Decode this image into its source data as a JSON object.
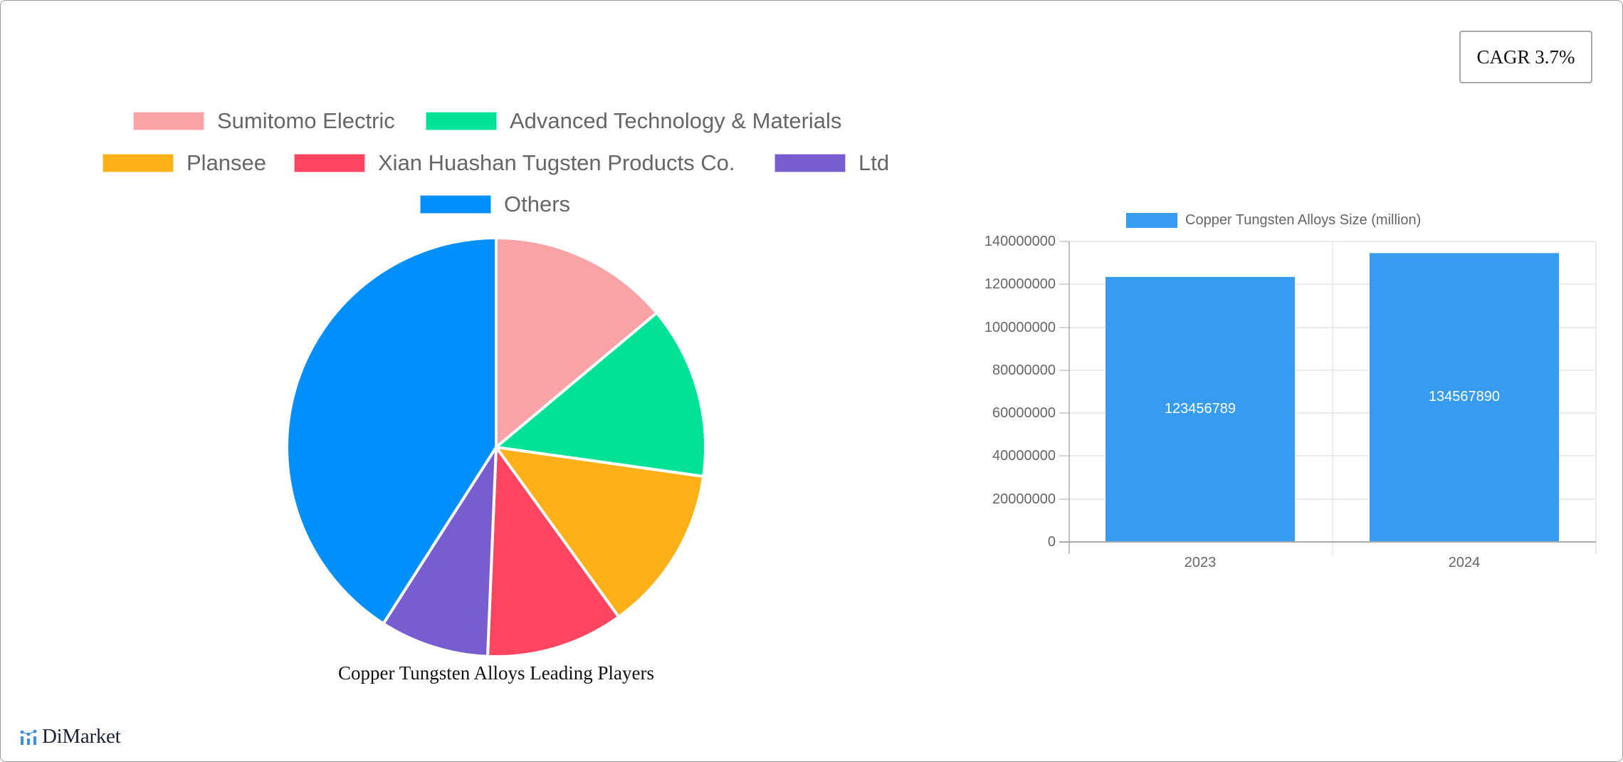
{
  "badge": {
    "cagr_label": "CAGR 3.7%"
  },
  "pie_legend": [
    {
      "label": "Sumitomo Electric",
      "color": "#f9a3a6"
    },
    {
      "label": "Advanced Technology & Materials",
      "color": "#00e396"
    },
    {
      "label": "Plansee",
      "color": "#feb019"
    },
    {
      "label": "Xian Huashan Tugsten Products Co.",
      "color": "#ff4560"
    },
    {
      "label": "Ltd",
      "color": "#775dd0"
    },
    {
      "label": "Others",
      "color": "#008ffb"
    }
  ],
  "pie_caption": "Copper Tungsten Alloys Leading Players",
  "bar_legend": {
    "label": "Copper Tungsten Alloys Size (million)",
    "color": "#379bf0"
  },
  "bar_axis": {
    "y_ticks": [
      "140000000",
      "120000000",
      "100000000",
      "80000000",
      "60000000",
      "40000000",
      "20000000",
      "0"
    ],
    "x_ticks": [
      "2023",
      "2024"
    ]
  },
  "bar_values": [
    "123456789",
    "134567890"
  ],
  "logo": {
    "text": "DiMarket",
    "icon": "bar-chart-logo-icon"
  },
  "chart_data": [
    {
      "type": "pie",
      "title": "Copper Tungsten Alloys Leading Players",
      "categories": [
        "Sumitomo Electric",
        "Advanced Technology & Materials",
        "Plansee",
        "Xian Huashan Tugsten Products Co.",
        "Ltd",
        "Others"
      ],
      "values": [
        13.9,
        13.3,
        12.8,
        10.6,
        8.4,
        40.9
      ],
      "colors": [
        "#f9a3a6",
        "#00e396",
        "#feb019",
        "#ff4560",
        "#775dd0",
        "#008ffb"
      ],
      "legend_position": "top"
    },
    {
      "type": "bar",
      "title": "",
      "categories": [
        "2023",
        "2024"
      ],
      "series": [
        {
          "name": "Copper Tungsten Alloys Size (million)",
          "values": [
            123456789,
            134567890
          ]
        }
      ],
      "xlabel": "",
      "ylabel": "",
      "ylim": [
        0,
        140000000
      ],
      "y_ticks": [
        0,
        20000000,
        40000000,
        60000000,
        80000000,
        100000000,
        120000000,
        140000000
      ],
      "grid": true,
      "legend_position": "top",
      "data_labels": true,
      "annotation": "CAGR 3.7%"
    }
  ]
}
